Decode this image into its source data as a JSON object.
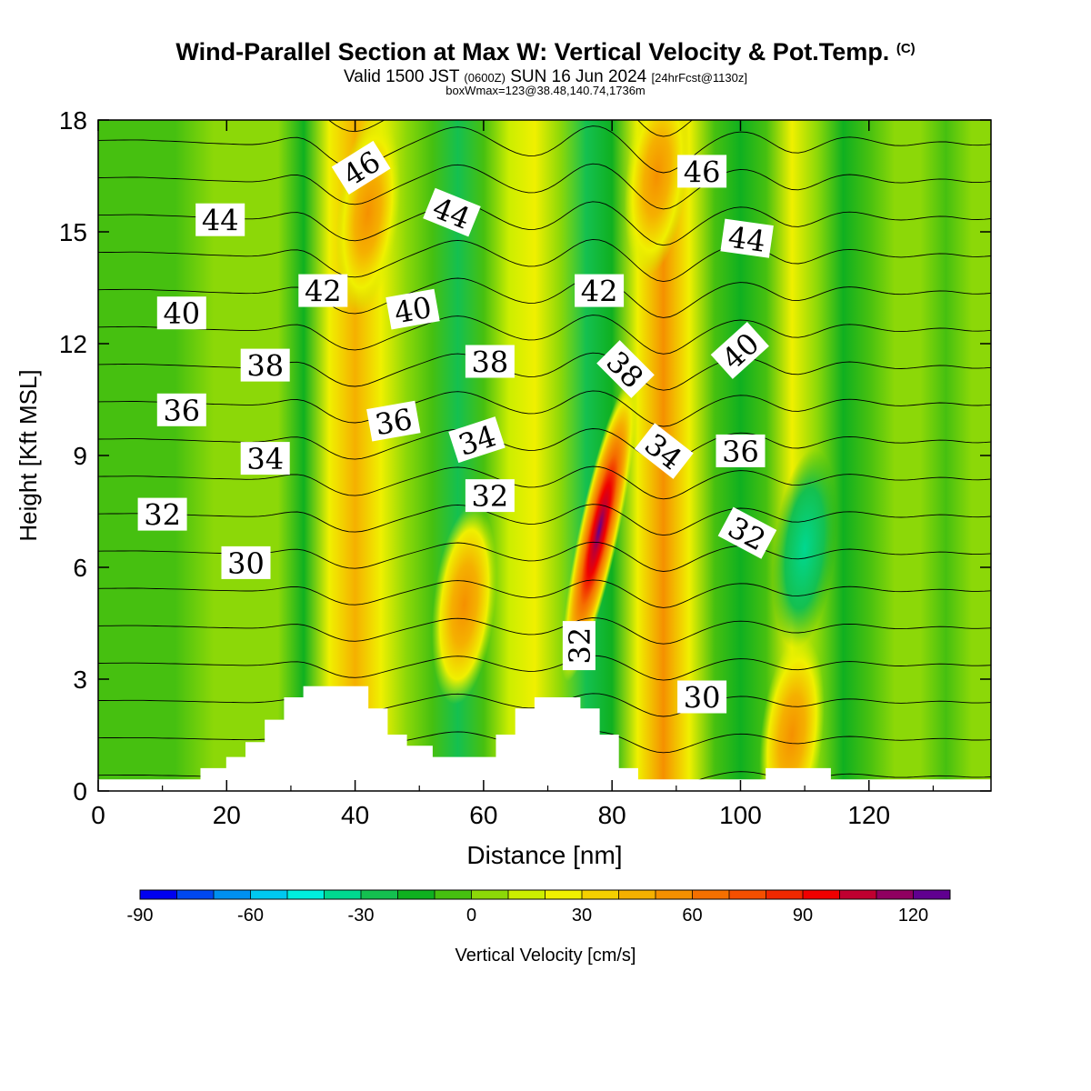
{
  "title": {
    "main": "Wind-Parallel Section at Max W: Vertical Velocity & Pot.Temp.",
    "copyright": "(C)",
    "valid_prefix": "Valid 1500 JST",
    "valid_utc": "(0600Z)",
    "valid_date": "SUN 16 Jun 2024",
    "forecast": "[24hrFcst@1130z]",
    "boxinfo": "boxWmax=123@38.48,140.74,1736m"
  },
  "colors": {
    "background": "#ffffff",
    "terrain": "#ffffff",
    "contour": "#000000"
  },
  "chart_data": {
    "type": "heatmap",
    "xlabel": "Distance [nm]",
    "ylabel": "Height [Kft MSL]",
    "xlim": [
      0,
      139
    ],
    "ylim": [
      0,
      18
    ],
    "xticks": [
      0,
      20,
      40,
      60,
      80,
      100,
      120
    ],
    "yticks": [
      0,
      3,
      6,
      9,
      12,
      15,
      18
    ],
    "colorbar": {
      "label": "Vertical Velocity [cm/s]",
      "range": [
        -90,
        130
      ],
      "step": 10,
      "tick_values": [
        -90,
        -60,
        -30,
        0,
        30,
        60,
        90,
        120
      ],
      "colors": [
        "#0000f0",
        "#0048f0",
        "#0090f0",
        "#00c8f0",
        "#00eedd",
        "#00d890",
        "#14c050",
        "#0fb020",
        "#46c010",
        "#8cd808",
        "#ccee00",
        "#f0f000",
        "#f5d000",
        "#f5b000",
        "#f59000",
        "#f57000",
        "#f54f00",
        "#f02800",
        "#f00000",
        "#c00030",
        "#900060",
        "#600090"
      ]
    },
    "vertical_velocity_bands": [
      {
        "x": 0,
        "w": -4
      },
      {
        "x": 6,
        "w": -5
      },
      {
        "x": 12,
        "w": -2
      },
      {
        "x": 18,
        "w": 2
      },
      {
        "x": 24,
        "w": 5
      },
      {
        "x": 28,
        "w": 0
      },
      {
        "x": 32,
        "w": -18
      },
      {
        "x": 36,
        "w": 25
      },
      {
        "x": 40,
        "w": 42
      },
      {
        "x": 44,
        "w": 20
      },
      {
        "x": 48,
        "w": 4
      },
      {
        "x": 52,
        "w": -10
      },
      {
        "x": 56,
        "w": -28
      },
      {
        "x": 60,
        "w": -10
      },
      {
        "x": 64,
        "w": 12
      },
      {
        "x": 68,
        "w": 25
      },
      {
        "x": 72,
        "w": 5
      },
      {
        "x": 76,
        "w": -30
      },
      {
        "x": 80,
        "w": -20
      },
      {
        "x": 84,
        "w": 20
      },
      {
        "x": 88,
        "w": 55
      },
      {
        "x": 92,
        "w": 20
      },
      {
        "x": 96,
        "w": -5
      },
      {
        "x": 100,
        "w": -20
      },
      {
        "x": 104,
        "w": -8
      },
      {
        "x": 108,
        "w": 25
      },
      {
        "x": 112,
        "w": 5
      },
      {
        "x": 116,
        "w": -12
      },
      {
        "x": 120,
        "w": -4
      },
      {
        "x": 124,
        "w": 8
      },
      {
        "x": 128,
        "w": 2
      },
      {
        "x": 132,
        "w": -5
      },
      {
        "x": 136,
        "w": 8
      }
    ],
    "vertical_velocity_cells": [
      {
        "x": 78,
        "y": 7.0,
        "w": 123
      },
      {
        "x": 57,
        "y": 5.0,
        "w": 55
      },
      {
        "x": 42,
        "y": 15.5,
        "w": 35
      },
      {
        "x": 87,
        "y": 16.5,
        "w": 55
      },
      {
        "x": 110,
        "y": 6.5,
        "w": -25
      },
      {
        "x": 108,
        "y": 1.5,
        "w": 25
      }
    ],
    "potential_temperature_labels": [
      {
        "x": 19,
        "y": 15.3,
        "value": "44",
        "angle": 0
      },
      {
        "x": 41,
        "y": 16.7,
        "value": "46",
        "angle": -32
      },
      {
        "x": 55,
        "y": 15.5,
        "value": "44",
        "angle": 22
      },
      {
        "x": 94,
        "y": 16.6,
        "value": "46",
        "angle": 0
      },
      {
        "x": 101,
        "y": 14.8,
        "value": "44",
        "angle": 8
      },
      {
        "x": 13,
        "y": 12.8,
        "value": "40",
        "angle": 0
      },
      {
        "x": 35,
        "y": 13.4,
        "value": "42",
        "angle": 0
      },
      {
        "x": 49,
        "y": 12.9,
        "value": "40",
        "angle": -10
      },
      {
        "x": 78,
        "y": 13.4,
        "value": "42",
        "angle": 0
      },
      {
        "x": 26,
        "y": 11.4,
        "value": "38",
        "angle": 0
      },
      {
        "x": 61,
        "y": 11.5,
        "value": "38",
        "angle": 0
      },
      {
        "x": 82,
        "y": 11.3,
        "value": "38",
        "angle": 45
      },
      {
        "x": 100,
        "y": 11.8,
        "value": "40",
        "angle": -42
      },
      {
        "x": 13,
        "y": 10.2,
        "value": "36",
        "angle": 0
      },
      {
        "x": 46,
        "y": 9.9,
        "value": "36",
        "angle": -10
      },
      {
        "x": 59,
        "y": 9.4,
        "value": "34",
        "angle": -18
      },
      {
        "x": 26,
        "y": 8.9,
        "value": "34",
        "angle": 0
      },
      {
        "x": 88,
        "y": 9.1,
        "value": "34",
        "angle": 38
      },
      {
        "x": 100,
        "y": 9.1,
        "value": "36",
        "angle": 0
      },
      {
        "x": 10,
        "y": 7.4,
        "value": "32",
        "angle": 0
      },
      {
        "x": 61,
        "y": 7.9,
        "value": "32",
        "angle": 0
      },
      {
        "x": 101,
        "y": 6.9,
        "value": "32",
        "angle": 28
      },
      {
        "x": 23,
        "y": 6.1,
        "value": "30",
        "angle": 0
      },
      {
        "x": 75,
        "y": 3.9,
        "value": "32",
        "angle": -90
      },
      {
        "x": 94,
        "y": 2.5,
        "value": "30",
        "angle": 0
      }
    ],
    "potential_temperature_range": [
      28,
      47
    ],
    "terrain": [
      [
        0,
        0.3
      ],
      [
        16,
        0.3
      ],
      [
        16,
        0.6
      ],
      [
        20,
        0.6
      ],
      [
        20,
        0.9
      ],
      [
        23,
        0.9
      ],
      [
        23,
        1.3
      ],
      [
        26,
        1.3
      ],
      [
        26,
        1.9
      ],
      [
        29,
        1.9
      ],
      [
        29,
        2.5
      ],
      [
        32,
        2.5
      ],
      [
        32,
        2.8
      ],
      [
        42,
        2.8
      ],
      [
        42,
        2.2
      ],
      [
        45,
        2.2
      ],
      [
        45,
        1.5
      ],
      [
        48,
        1.5
      ],
      [
        48,
        1.2
      ],
      [
        52,
        1.2
      ],
      [
        52,
        0.9
      ],
      [
        62,
        0.9
      ],
      [
        62,
        1.5
      ],
      [
        65,
        1.5
      ],
      [
        65,
        2.2
      ],
      [
        68,
        2.2
      ],
      [
        68,
        2.5
      ],
      [
        75,
        2.5
      ],
      [
        75,
        2.2
      ],
      [
        78,
        2.2
      ],
      [
        78,
        1.5
      ],
      [
        81,
        1.5
      ],
      [
        81,
        0.6
      ],
      [
        84,
        0.6
      ],
      [
        84,
        0.3
      ],
      [
        104,
        0.3
      ],
      [
        104,
        0.6
      ],
      [
        114,
        0.6
      ],
      [
        114,
        0.3
      ],
      [
        139,
        0.3
      ]
    ]
  }
}
